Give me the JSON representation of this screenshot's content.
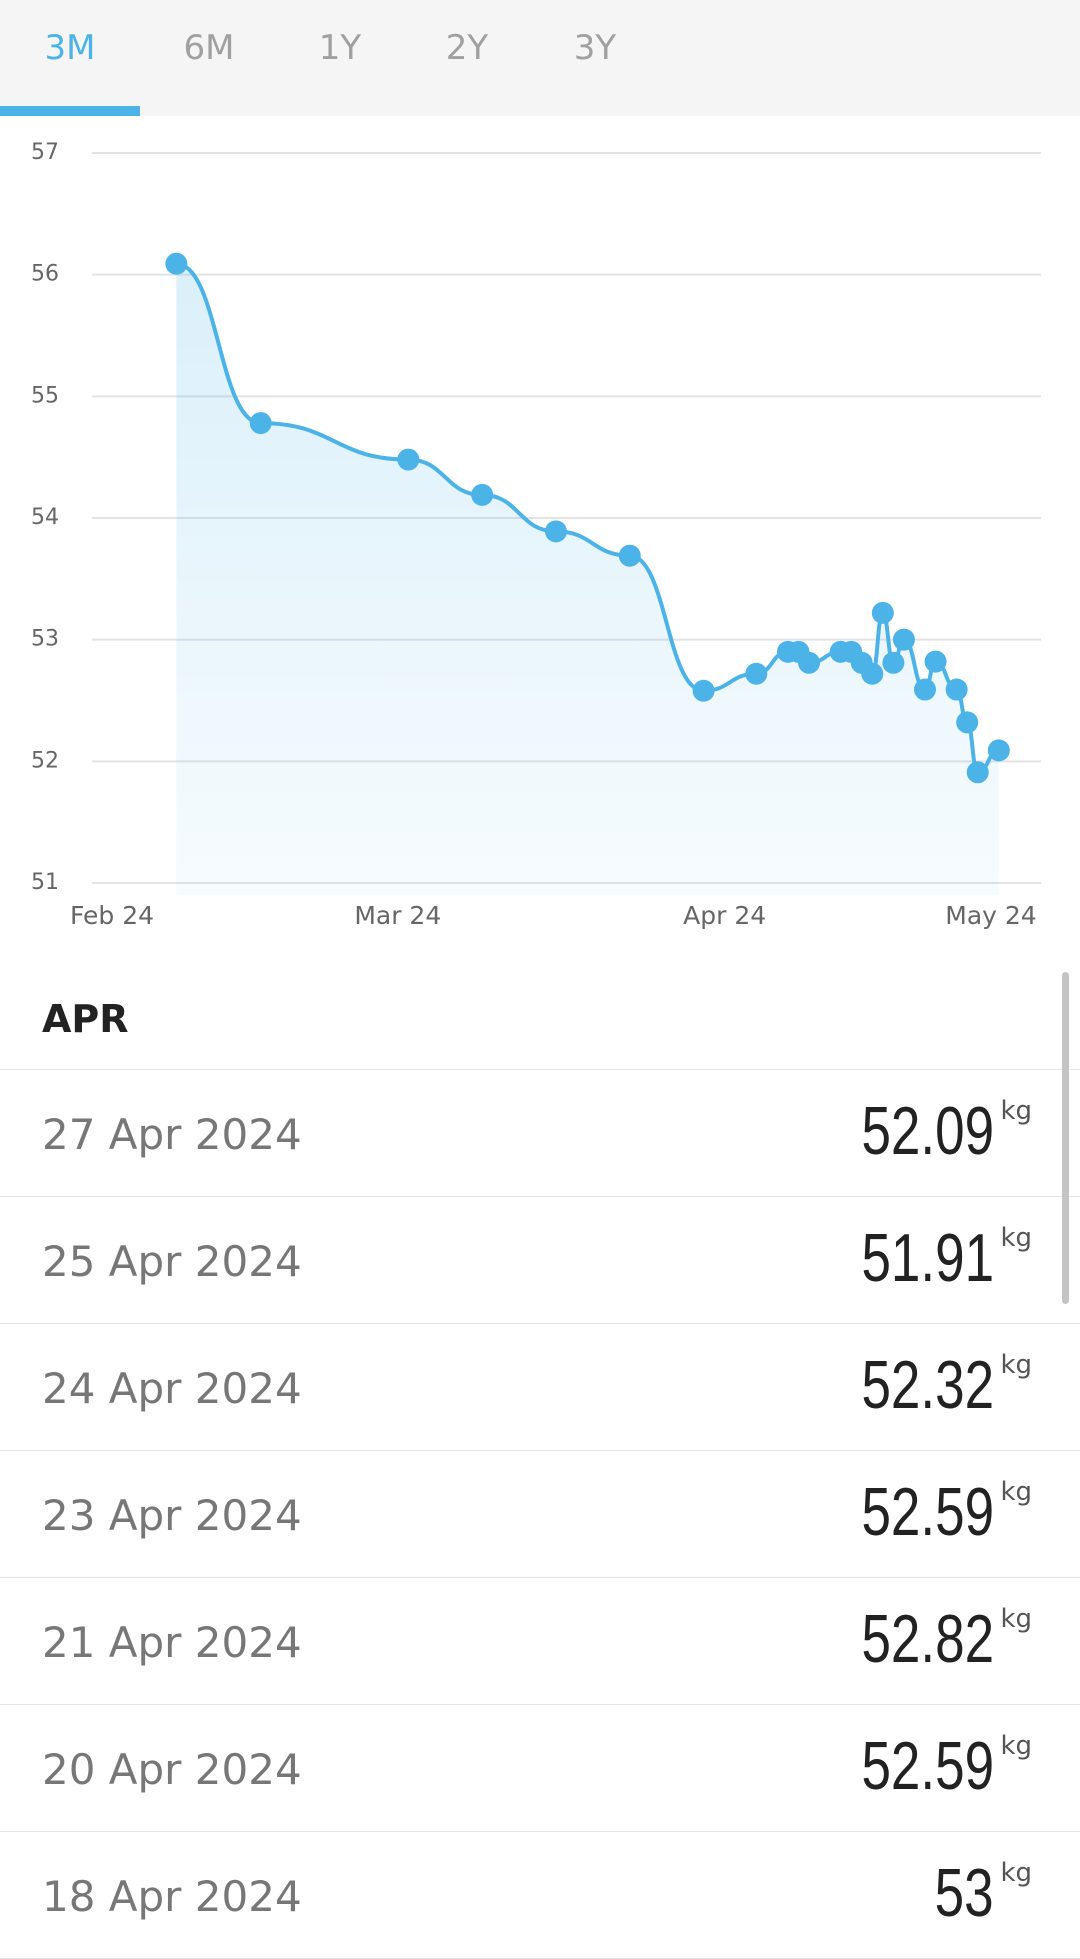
{
  "tabs": {
    "items": [
      "3M",
      "6M",
      "1Y",
      "2Y",
      "3Y"
    ],
    "active": 0
  },
  "chart_data": {
    "type": "line",
    "color": "#4bb3e8",
    "grid": true,
    "x": [
      "2024-02-09",
      "2024-02-17",
      "2024-03-02",
      "2024-03-09",
      "2024-03-16",
      "2024-03-23",
      "2024-03-30",
      "2024-04-04",
      "2024-04-07",
      "2024-04-08",
      "2024-04-09",
      "2024-04-12",
      "2024-04-13",
      "2024-04-14",
      "2024-04-15",
      "2024-04-16",
      "2024-04-17",
      "2024-04-18",
      "2024-04-20",
      "2024-04-21",
      "2024-04-23",
      "2024-04-24",
      "2024-04-25",
      "2024-04-27"
    ],
    "values": [
      56.09,
      54.78,
      54.48,
      54.19,
      53.89,
      53.69,
      52.58,
      52.72,
      52.9,
      52.9,
      52.81,
      52.9,
      52.9,
      52.81,
      52.72,
      53.22,
      52.81,
      53,
      52.59,
      52.82,
      52.59,
      52.32,
      51.91,
      52.09
    ],
    "xlim": [
      "2024-02-01",
      "2024-05-01"
    ],
    "xticks": [
      {
        "value": "2024-02-01",
        "label": "Feb 24"
      },
      {
        "value": "2024-03-01",
        "label": "Mar 24"
      },
      {
        "value": "2024-04-01",
        "label": "Apr 24"
      },
      {
        "value": "2024-05-01",
        "label": "May 24"
      }
    ],
    "ylim": [
      51,
      57
    ],
    "yticks": [
      51,
      52,
      53,
      54,
      55,
      56,
      57
    ]
  },
  "list": {
    "header": "APR",
    "unit": "kg",
    "rows": [
      {
        "date": "27 Apr 2024",
        "value": 52.09
      },
      {
        "date": "25 Apr 2024",
        "value": 51.91
      },
      {
        "date": "24 Apr 2024",
        "value": 52.32
      },
      {
        "date": "23 Apr 2024",
        "value": 52.59
      },
      {
        "date": "21 Apr 2024",
        "value": 52.82
      },
      {
        "date": "20 Apr 2024",
        "value": 52.59
      },
      {
        "date": "18 Apr 2024",
        "value": 53
      }
    ]
  }
}
